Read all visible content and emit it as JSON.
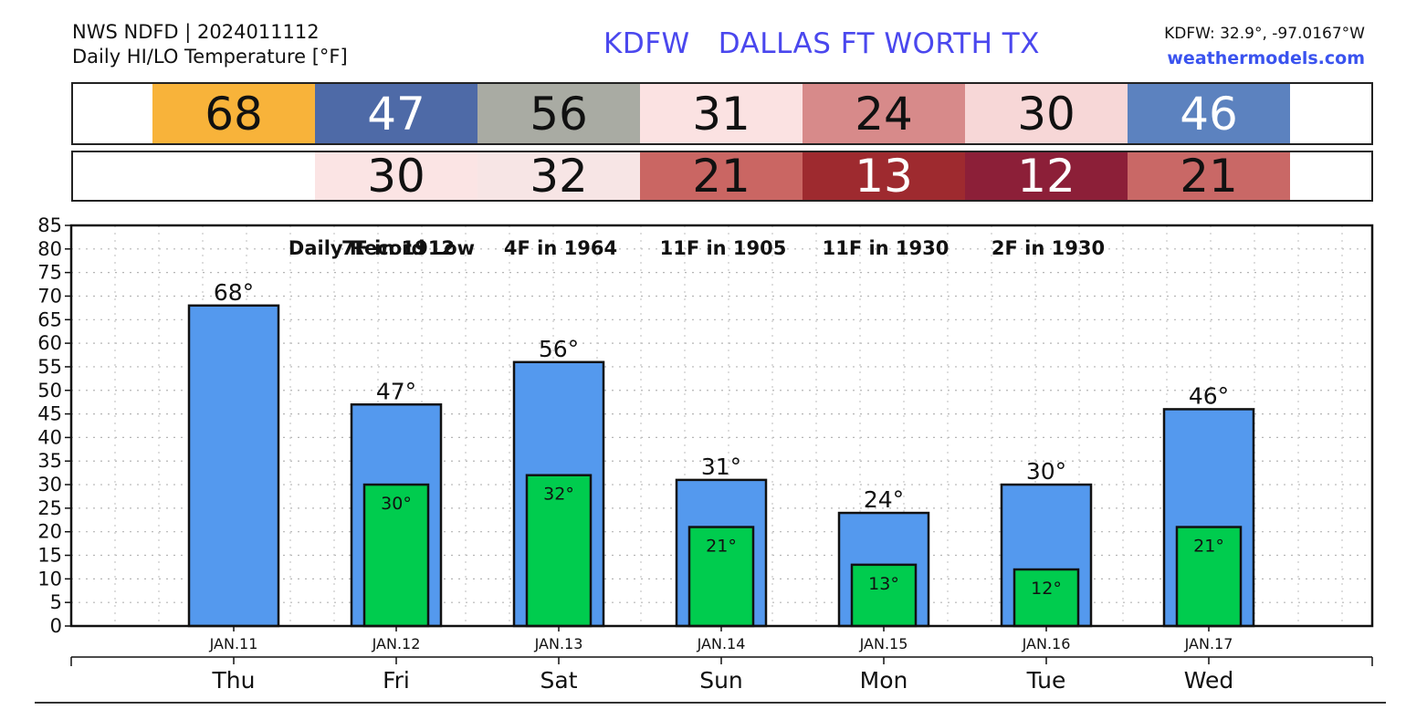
{
  "header": {
    "source_line": "NWS NDFD | 2024011112",
    "product_line": "Daily HI/LO Temperature [°F]",
    "title": "KDFW   DALLAS FT WORTH TX",
    "coords": "KDFW: 32.9°, -97.0167°W",
    "site": "weathermodels.com"
  },
  "hi_strip": [
    {
      "value": "68",
      "bg": "#f8b33a",
      "fg": "#111111"
    },
    {
      "value": "47",
      "bg": "#4e6aa7",
      "fg": "#ffffff"
    },
    {
      "value": "56",
      "bg": "#a9aba3",
      "fg": "#111111"
    },
    {
      "value": "31",
      "bg": "#fbe2e2",
      "fg": "#111111"
    },
    {
      "value": "24",
      "bg": "#d78a8a",
      "fg": "#111111"
    },
    {
      "value": "30",
      "bg": "#f7d7d7",
      "fg": "#111111"
    },
    {
      "value": "46",
      "bg": "#5c82bf",
      "fg": "#ffffff"
    }
  ],
  "lo_strip": [
    {
      "value": "",
      "bg": "#ffffff",
      "fg": "#111111"
    },
    {
      "value": "30",
      "bg": "#fbe4e4",
      "fg": "#111111"
    },
    {
      "value": "32",
      "bg": "#f7e5e5",
      "fg": "#111111"
    },
    {
      "value": "21",
      "bg": "#ca6663",
      "fg": "#111111"
    },
    {
      "value": "13",
      "bg": "#9e2a2f",
      "fg": "#ffffff"
    },
    {
      "value": "12",
      "bg": "#8c1f38",
      "fg": "#ffffff"
    },
    {
      "value": "21",
      "bg": "#c96866",
      "fg": "#111111"
    }
  ],
  "chart_data": {
    "type": "bar",
    "ylim": [
      0,
      85
    ],
    "yticks": [
      0,
      5,
      10,
      15,
      20,
      25,
      30,
      35,
      40,
      45,
      50,
      55,
      60,
      65,
      70,
      75,
      80,
      85
    ],
    "grid": true,
    "categories": [
      "JAN.11",
      "JAN.12",
      "JAN.13",
      "JAN.14",
      "JAN.15",
      "JAN.16",
      "JAN.17"
    ],
    "weekdays": [
      "Thu",
      "Fri",
      "Sat",
      "Sun",
      "Mon",
      "Tue",
      "Wed"
    ],
    "series": [
      {
        "values": [
          68,
          47,
          56,
          31,
          24,
          30,
          46
        ],
        "labels": [
          "68°",
          "47°",
          "56°",
          "31°",
          "24°",
          "30°",
          "46°"
        ],
        "color": "#5499ee"
      },
      {
        "values": [
          null,
          30,
          32,
          21,
          13,
          12,
          21
        ],
        "labels": [
          "",
          "30°",
          "32°",
          "21°",
          "13°",
          "12°",
          "21°"
        ],
        "color": "#00cc4e"
      }
    ],
    "record_low_label": "Daily Record Low",
    "record_lows": [
      "",
      "7F in 1912",
      "4F in 1964",
      "11F in 1905",
      "11F in 1930",
      "2F in 1930",
      ""
    ]
  }
}
